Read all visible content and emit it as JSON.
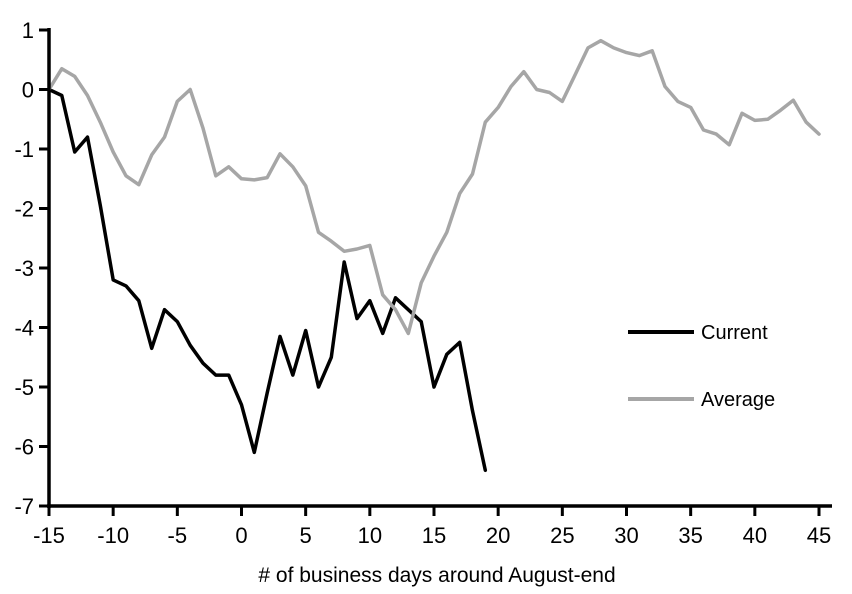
{
  "chart_data": {
    "type": "line",
    "title": "",
    "xlabel": "# of business days around August-end",
    "ylabel": "",
    "xlim": [
      -15,
      45
    ],
    "ylim": [
      -7,
      1
    ],
    "x_ticks": [
      -15,
      -10,
      -5,
      0,
      5,
      10,
      15,
      20,
      25,
      30,
      35,
      40,
      45
    ],
    "y_ticks": [
      1,
      0,
      -1,
      -2,
      -3,
      -4,
      -5,
      -6,
      -7
    ],
    "grid": false,
    "legend_position": "inside-right",
    "background_color": "#ffffff",
    "axis_color": "#000000",
    "series": [
      {
        "name": "Current",
        "color": "#000000",
        "x": [
          -15,
          -14,
          -13,
          -12,
          -11,
          -10,
          -9,
          -8,
          -7,
          -6,
          -5,
          -4,
          -3,
          -2,
          -1,
          0,
          1,
          2,
          3,
          4,
          5,
          6,
          7,
          8,
          9,
          10,
          11,
          12,
          13,
          14,
          15,
          16,
          17,
          18,
          19
        ],
        "values": [
          0,
          -0.1,
          -1.05,
          -0.8,
          -1.95,
          -3.2,
          -3.3,
          -3.55,
          -4.35,
          -3.7,
          -3.9,
          -4.3,
          -4.6,
          -4.8,
          -4.8,
          -5.3,
          -6.1,
          -5.1,
          -4.15,
          -4.8,
          -4.05,
          -5.0,
          -4.5,
          -2.9,
          -3.85,
          -3.55,
          -4.1,
          -3.5,
          -3.7,
          -3.9,
          -5.0,
          -4.45,
          -4.25,
          -5.4,
          -6.4
        ]
      },
      {
        "name": "Average",
        "color": "#a6a6a6",
        "x": [
          -15,
          -14,
          -13,
          -12,
          -11,
          -10,
          -9,
          -8,
          -7,
          -6,
          -5,
          -4,
          -3,
          -2,
          -1,
          0,
          1,
          2,
          3,
          4,
          5,
          6,
          7,
          8,
          9,
          10,
          11,
          12,
          13,
          14,
          15,
          16,
          17,
          18,
          19,
          20,
          21,
          22,
          23,
          24,
          25,
          26,
          27,
          28,
          29,
          30,
          31,
          32,
          33,
          34,
          35,
          36,
          37,
          38,
          39,
          40,
          41,
          42,
          43,
          44,
          45
        ],
        "values": [
          0,
          0.35,
          0.22,
          -0.1,
          -0.55,
          -1.05,
          -1.45,
          -1.6,
          -1.1,
          -0.8,
          -0.2,
          0.0,
          -0.65,
          -1.45,
          -1.3,
          -1.5,
          -1.52,
          -1.48,
          -1.08,
          -1.3,
          -1.62,
          -2.4,
          -2.55,
          -2.72,
          -2.68,
          -2.62,
          -3.45,
          -3.7,
          -4.1,
          -3.25,
          -2.8,
          -2.4,
          -1.75,
          -1.42,
          -0.55,
          -0.3,
          0.05,
          0.3,
          0.0,
          -0.05,
          -0.2,
          0.25,
          0.7,
          0.82,
          0.7,
          0.62,
          0.57,
          0.65,
          0.05,
          -0.2,
          -0.3,
          -0.68,
          -0.75,
          -0.93,
          -0.4,
          -0.52,
          -0.5,
          -0.35,
          -0.18,
          -0.55,
          -0.75
        ]
      }
    ],
    "legend": {
      "items": [
        {
          "label": "Current",
          "color": "#000000"
        },
        {
          "label": "Average",
          "color": "#a6a6a6"
        }
      ]
    }
  }
}
